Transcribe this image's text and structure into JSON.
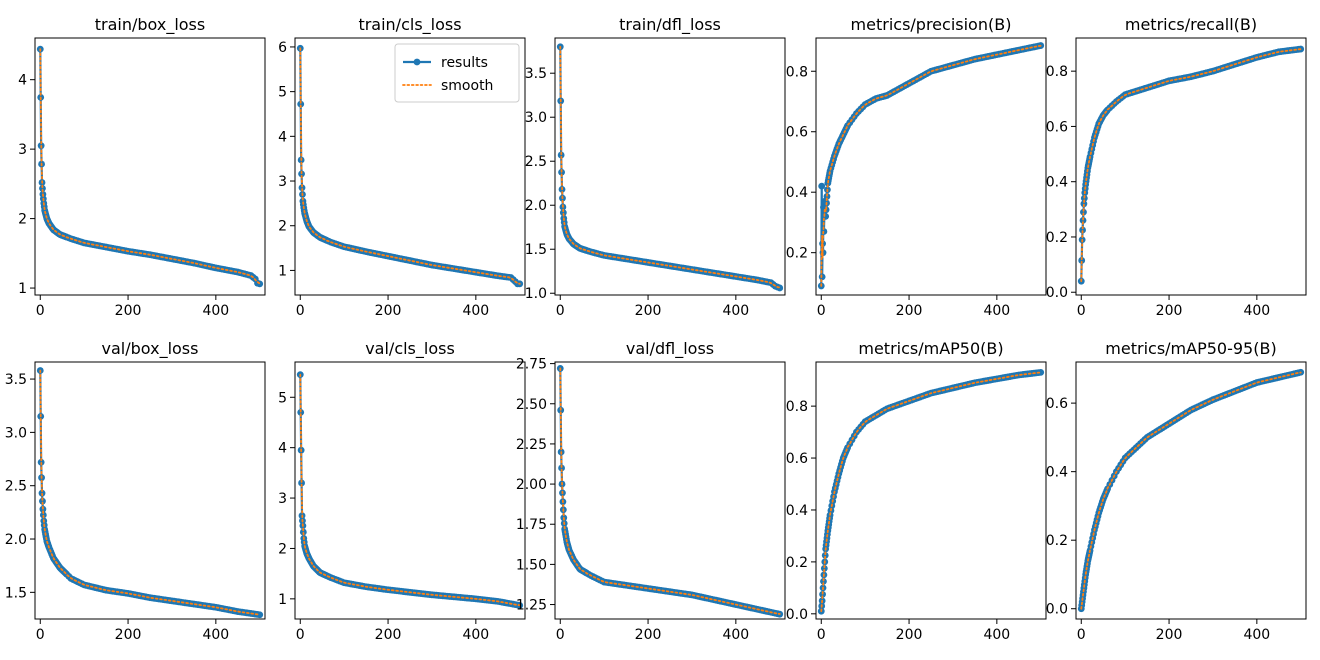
{
  "figure": {
    "background": "#ffffff"
  },
  "colors": {
    "results": "#1f77b4",
    "smooth": "#ff7f0e",
    "axes": "#000000"
  },
  "legend": {
    "panel": 1,
    "location": "top-right",
    "entries": [
      "results",
      "smooth"
    ]
  },
  "chart_data": [
    {
      "type": "line",
      "title": "train/box_loss",
      "xlim": [
        -12,
        512
      ],
      "ylim": [
        0.9,
        4.6
      ],
      "xticks": [
        0,
        200,
        400
      ],
      "xtick_labels": [
        "0",
        "200",
        "400"
      ],
      "yticks": [
        1,
        2,
        3,
        4
      ],
      "ytick_labels": [
        "1",
        "2",
        "3",
        "4"
      ],
      "shape": "loss",
      "n": 500,
      "points": [
        [
          0,
          4.44
        ],
        [
          2,
          3.05
        ],
        [
          4,
          2.52
        ],
        [
          6,
          2.35
        ],
        [
          8,
          2.22
        ],
        [
          10,
          2.12
        ],
        [
          15,
          2.0
        ],
        [
          20,
          1.93
        ],
        [
          30,
          1.84
        ],
        [
          45,
          1.77
        ],
        [
          70,
          1.71
        ],
        [
          100,
          1.65
        ],
        [
          150,
          1.59
        ],
        [
          200,
          1.53
        ],
        [
          250,
          1.48
        ],
        [
          300,
          1.42
        ],
        [
          350,
          1.36
        ],
        [
          400,
          1.29
        ],
        [
          450,
          1.23
        ],
        [
          480,
          1.18
        ],
        [
          490,
          1.13
        ],
        [
          495,
          1.07
        ],
        [
          500,
          1.06
        ]
      ],
      "series": [
        {
          "name": "results"
        },
        {
          "name": "smooth"
        }
      ]
    },
    {
      "type": "line",
      "title": "train/cls_loss",
      "xlim": [
        -12,
        512
      ],
      "ylim": [
        0.45,
        6.2
      ],
      "xticks": [
        0,
        200,
        400
      ],
      "xtick_labels": [
        "0",
        "200",
        "400"
      ],
      "yticks": [
        1,
        2,
        3,
        4,
        5,
        6
      ],
      "ytick_labels": [
        "1",
        "2",
        "3",
        "4",
        "5",
        "6"
      ],
      "shape": "loss",
      "n": 500,
      "points": [
        [
          0,
          5.97
        ],
        [
          2,
          3.47
        ],
        [
          4,
          2.85
        ],
        [
          6,
          2.55
        ],
        [
          8,
          2.4
        ],
        [
          10,
          2.28
        ],
        [
          15,
          2.1
        ],
        [
          20,
          1.98
        ],
        [
          30,
          1.85
        ],
        [
          45,
          1.74
        ],
        [
          70,
          1.63
        ],
        [
          100,
          1.53
        ],
        [
          150,
          1.42
        ],
        [
          200,
          1.32
        ],
        [
          250,
          1.22
        ],
        [
          300,
          1.12
        ],
        [
          350,
          1.04
        ],
        [
          400,
          0.96
        ],
        [
          450,
          0.88
        ],
        [
          480,
          0.84
        ],
        [
          490,
          0.75
        ],
        [
          495,
          0.7
        ],
        [
          500,
          0.7
        ]
      ],
      "series": [
        {
          "name": "results"
        },
        {
          "name": "smooth"
        }
      ]
    },
    {
      "type": "line",
      "title": "train/dfl_loss",
      "xlim": [
        -12,
        512
      ],
      "ylim": [
        0.98,
        3.9
      ],
      "xticks": [
        0,
        200,
        400
      ],
      "xtick_labels": [
        "0",
        "200",
        "400"
      ],
      "yticks": [
        1.0,
        1.5,
        2.0,
        2.5,
        3.0,
        3.5
      ],
      "ytick_labels": [
        "1.0",
        "1.5",
        "2.0",
        "2.5",
        "3.0",
        "3.5"
      ],
      "shape": "loss",
      "n": 500,
      "points": [
        [
          0,
          3.8
        ],
        [
          2,
          2.57
        ],
        [
          4,
          2.18
        ],
        [
          6,
          1.98
        ],
        [
          8,
          1.85
        ],
        [
          10,
          1.76
        ],
        [
          15,
          1.67
        ],
        [
          20,
          1.62
        ],
        [
          30,
          1.56
        ],
        [
          45,
          1.51
        ],
        [
          70,
          1.47
        ],
        [
          100,
          1.43
        ],
        [
          150,
          1.39
        ],
        [
          200,
          1.35
        ],
        [
          250,
          1.31
        ],
        [
          300,
          1.27
        ],
        [
          350,
          1.23
        ],
        [
          400,
          1.19
        ],
        [
          450,
          1.15
        ],
        [
          480,
          1.12
        ],
        [
          490,
          1.08
        ],
        [
          495,
          1.07
        ],
        [
          500,
          1.06
        ]
      ],
      "series": [
        {
          "name": "results"
        },
        {
          "name": "smooth"
        }
      ]
    },
    {
      "type": "line",
      "title": "metrics/precision(B)",
      "xlim": [
        -12,
        512
      ],
      "ylim": [
        0.06,
        0.91
      ],
      "xticks": [
        0,
        200,
        400
      ],
      "xtick_labels": [
        "0",
        "200",
        "400"
      ],
      "yticks": [
        0.2,
        0.4,
        0.6,
        0.8
      ],
      "ytick_labels": [
        "0.2",
        "0.4",
        "0.6",
        "0.8"
      ],
      "shape": "metric",
      "n": 500,
      "points": [
        [
          0,
          0.09
        ],
        [
          1,
          0.42
        ],
        [
          2,
          0.12
        ],
        [
          3,
          0.23
        ],
        [
          4,
          0.2
        ],
        [
          5,
          0.35
        ],
        [
          6,
          0.27
        ],
        [
          8,
          0.37
        ],
        [
          10,
          0.32
        ],
        [
          15,
          0.43
        ],
        [
          20,
          0.47
        ],
        [
          30,
          0.52
        ],
        [
          40,
          0.56
        ],
        [
          50,
          0.59
        ],
        [
          60,
          0.62
        ],
        [
          80,
          0.66
        ],
        [
          100,
          0.69
        ],
        [
          125,
          0.71
        ],
        [
          150,
          0.72
        ],
        [
          200,
          0.76
        ],
        [
          250,
          0.8
        ],
        [
          300,
          0.82
        ],
        [
          350,
          0.84
        ],
        [
          400,
          0.855
        ],
        [
          450,
          0.87
        ],
        [
          500,
          0.885
        ]
      ],
      "series": [
        {
          "name": "results"
        },
        {
          "name": "smooth"
        }
      ]
    },
    {
      "type": "line",
      "title": "metrics/recall(B)",
      "xlim": [
        -12,
        512
      ],
      "ylim": [
        -0.01,
        0.92
      ],
      "xticks": [
        0,
        200,
        400
      ],
      "xtick_labels": [
        "0",
        "200",
        "400"
      ],
      "yticks": [
        0.0,
        0.2,
        0.4,
        0.6,
        0.8
      ],
      "ytick_labels": [
        "0.0",
        "0.2",
        "0.4",
        "0.6",
        "0.8"
      ],
      "shape": "metric",
      "n": 500,
      "points": [
        [
          0,
          0.04
        ],
        [
          2,
          0.19
        ],
        [
          4,
          0.26
        ],
        [
          6,
          0.32
        ],
        [
          8,
          0.36
        ],
        [
          10,
          0.39
        ],
        [
          15,
          0.45
        ],
        [
          20,
          0.49
        ],
        [
          30,
          0.56
        ],
        [
          40,
          0.61
        ],
        [
          50,
          0.64
        ],
        [
          60,
          0.66
        ],
        [
          80,
          0.69
        ],
        [
          100,
          0.715
        ],
        [
          150,
          0.74
        ],
        [
          200,
          0.765
        ],
        [
          250,
          0.78
        ],
        [
          300,
          0.8
        ],
        [
          350,
          0.825
        ],
        [
          400,
          0.85
        ],
        [
          450,
          0.87
        ],
        [
          500,
          0.88
        ]
      ],
      "series": [
        {
          "name": "results"
        },
        {
          "name": "smooth"
        }
      ]
    },
    {
      "type": "line",
      "title": "val/box_loss",
      "xlim": [
        -12,
        512
      ],
      "ylim": [
        1.25,
        3.66
      ],
      "xticks": [
        0,
        200,
        400
      ],
      "xtick_labels": [
        "0",
        "200",
        "400"
      ],
      "yticks": [
        1.5,
        2.0,
        2.5,
        3.0,
        3.5
      ],
      "ytick_labels": [
        "1.5",
        "2.0",
        "2.5",
        "3.0",
        "3.5"
      ],
      "shape": "loss",
      "n": 500,
      "points": [
        [
          0,
          3.58
        ],
        [
          2,
          2.72
        ],
        [
          4,
          2.43
        ],
        [
          6,
          2.28
        ],
        [
          8,
          2.17
        ],
        [
          10,
          2.09
        ],
        [
          15,
          1.98
        ],
        [
          20,
          1.92
        ],
        [
          30,
          1.82
        ],
        [
          45,
          1.73
        ],
        [
          70,
          1.63
        ],
        [
          100,
          1.57
        ],
        [
          150,
          1.52
        ],
        [
          200,
          1.49
        ],
        [
          250,
          1.45
        ],
        [
          300,
          1.42
        ],
        [
          350,
          1.39
        ],
        [
          400,
          1.36
        ],
        [
          450,
          1.32
        ],
        [
          500,
          1.29
        ]
      ],
      "series": [
        {
          "name": "results"
        },
        {
          "name": "smooth"
        }
      ]
    },
    {
      "type": "line",
      "title": "val/cls_loss",
      "xlim": [
        -12,
        512
      ],
      "ylim": [
        0.6,
        5.7
      ],
      "xticks": [
        0,
        200,
        400
      ],
      "xtick_labels": [
        "0",
        "200",
        "400"
      ],
      "yticks": [
        1,
        2,
        3,
        4,
        5
      ],
      "ytick_labels": [
        "1",
        "2",
        "3",
        "4",
        "5"
      ],
      "shape": "loss",
      "n": 500,
      "points": [
        [
          0,
          5.45
        ],
        [
          2,
          3.95
        ],
        [
          4,
          2.65
        ],
        [
          6,
          2.45
        ],
        [
          8,
          2.2
        ],
        [
          10,
          2.05
        ],
        [
          15,
          1.9
        ],
        [
          20,
          1.8
        ],
        [
          30,
          1.65
        ],
        [
          45,
          1.52
        ],
        [
          70,
          1.42
        ],
        [
          100,
          1.32
        ],
        [
          150,
          1.24
        ],
        [
          200,
          1.18
        ],
        [
          250,
          1.13
        ],
        [
          300,
          1.08
        ],
        [
          350,
          1.04
        ],
        [
          400,
          1.0
        ],
        [
          450,
          0.95
        ],
        [
          500,
          0.87
        ]
      ],
      "series": [
        {
          "name": "results"
        },
        {
          "name": "smooth"
        }
      ]
    },
    {
      "type": "line",
      "title": "val/dfl_loss",
      "xlim": [
        -12,
        512
      ],
      "ylim": [
        1.16,
        2.76
      ],
      "xticks": [
        0,
        200,
        400
      ],
      "xtick_labels": [
        "0",
        "200",
        "400"
      ],
      "yticks": [
        1.25,
        1.5,
        1.75,
        2.0,
        2.25,
        2.5,
        2.75
      ],
      "ytick_labels": [
        "1.25",
        "1.50",
        "1.75",
        "2.00",
        "2.25",
        "2.50",
        "2.75"
      ],
      "shape": "loss",
      "n": 500,
      "points": [
        [
          0,
          2.72
        ],
        [
          2,
          2.2
        ],
        [
          4,
          2.0
        ],
        [
          6,
          1.89
        ],
        [
          8,
          1.79
        ],
        [
          10,
          1.72
        ],
        [
          15,
          1.64
        ],
        [
          20,
          1.59
        ],
        [
          30,
          1.53
        ],
        [
          45,
          1.47
        ],
        [
          70,
          1.43
        ],
        [
          100,
          1.39
        ],
        [
          150,
          1.37
        ],
        [
          200,
          1.35
        ],
        [
          250,
          1.33
        ],
        [
          300,
          1.31
        ],
        [
          350,
          1.28
        ],
        [
          400,
          1.25
        ],
        [
          450,
          1.22
        ],
        [
          500,
          1.19
        ]
      ],
      "series": [
        {
          "name": "results"
        },
        {
          "name": "smooth"
        }
      ]
    },
    {
      "type": "line",
      "title": "metrics/mAP50(B)",
      "xlim": [
        -12,
        512
      ],
      "ylim": [
        -0.02,
        0.97
      ],
      "xticks": [
        0,
        200,
        400
      ],
      "xtick_labels": [
        "0",
        "200",
        "400"
      ],
      "yticks": [
        0.0,
        0.2,
        0.4,
        0.6,
        0.8
      ],
      "ytick_labels": [
        "0.0",
        "0.2",
        "0.4",
        "0.6",
        "0.8"
      ],
      "shape": "metric",
      "n": 500,
      "points": [
        [
          0,
          0.01
        ],
        [
          2,
          0.05
        ],
        [
          4,
          0.1
        ],
        [
          6,
          0.15
        ],
        [
          8,
          0.2
        ],
        [
          10,
          0.25
        ],
        [
          15,
          0.32
        ],
        [
          20,
          0.38
        ],
        [
          30,
          0.47
        ],
        [
          40,
          0.54
        ],
        [
          50,
          0.6
        ],
        [
          60,
          0.64
        ],
        [
          80,
          0.7
        ],
        [
          100,
          0.74
        ],
        [
          150,
          0.79
        ],
        [
          200,
          0.82
        ],
        [
          250,
          0.85
        ],
        [
          300,
          0.87
        ],
        [
          350,
          0.89
        ],
        [
          400,
          0.905
        ],
        [
          450,
          0.92
        ],
        [
          500,
          0.93
        ]
      ],
      "series": [
        {
          "name": "results"
        },
        {
          "name": "smooth"
        }
      ]
    },
    {
      "type": "line",
      "title": "metrics/mAP50-95(B)",
      "xlim": [
        -12,
        512
      ],
      "ylim": [
        -0.03,
        0.72
      ],
      "xticks": [
        0,
        200,
        400
      ],
      "xtick_labels": [
        "0",
        "200",
        "400"
      ],
      "yticks": [
        0.0,
        0.2,
        0.4,
        0.6
      ],
      "ytick_labels": [
        "0.0",
        "0.2",
        "0.4",
        "0.6"
      ],
      "shape": "metric",
      "n": 500,
      "points": [
        [
          0,
          0.0
        ],
        [
          2,
          0.02
        ],
        [
          4,
          0.04
        ],
        [
          6,
          0.06
        ],
        [
          8,
          0.08
        ],
        [
          10,
          0.1
        ],
        [
          15,
          0.14
        ],
        [
          20,
          0.17
        ],
        [
          30,
          0.23
        ],
        [
          40,
          0.28
        ],
        [
          50,
          0.32
        ],
        [
          60,
          0.35
        ],
        [
          80,
          0.4
        ],
        [
          100,
          0.44
        ],
        [
          150,
          0.5
        ],
        [
          200,
          0.54
        ],
        [
          250,
          0.58
        ],
        [
          300,
          0.61
        ],
        [
          350,
          0.635
        ],
        [
          400,
          0.66
        ],
        [
          450,
          0.675
        ],
        [
          500,
          0.69
        ]
      ],
      "series": [
        {
          "name": "results"
        },
        {
          "name": "smooth"
        }
      ]
    }
  ]
}
